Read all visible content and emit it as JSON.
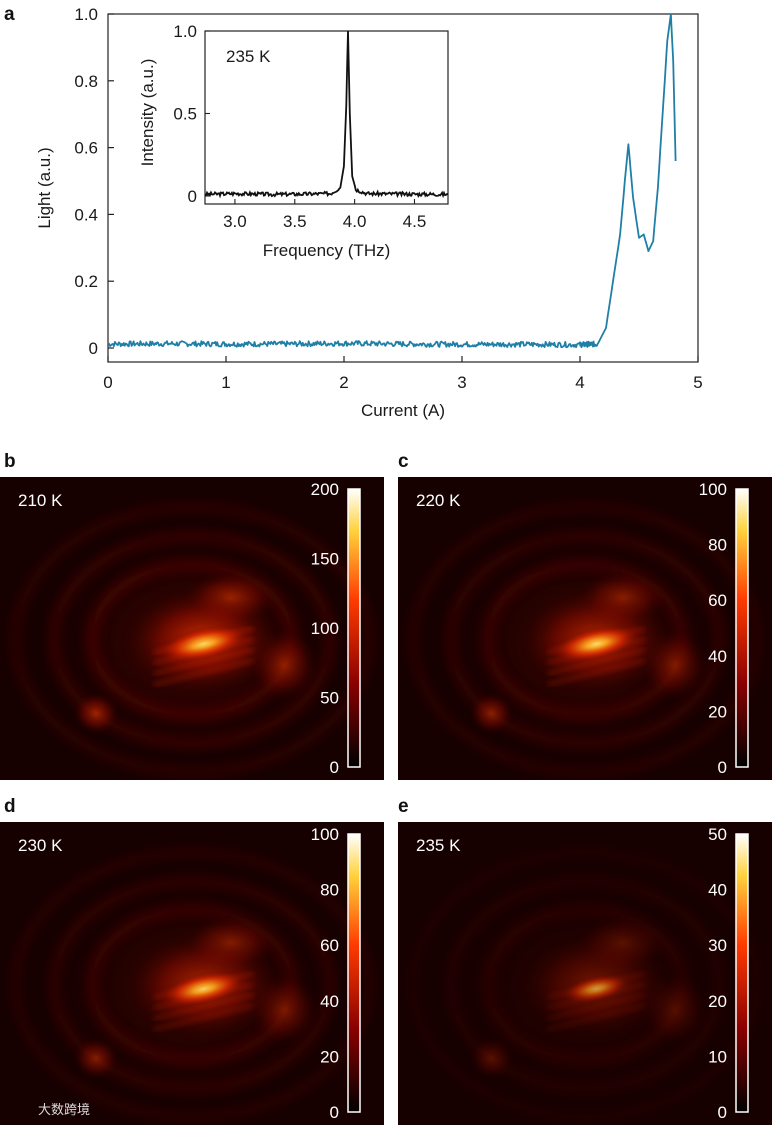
{
  "chart_data": [
    {
      "panel": "a",
      "type": "line",
      "xlabel": "Current (A)",
      "ylabel": "Light (a.u.)",
      "xlim": [
        0,
        5
      ],
      "ylim": [
        0,
        1.0
      ],
      "xticks": [
        "0",
        "1",
        "2",
        "3",
        "4",
        "5"
      ],
      "yticks": [
        "0",
        "0.2",
        "0.4",
        "0.6",
        "0.8",
        "1.0"
      ],
      "series_color": "#1f7fa6",
      "x": [
        0.0,
        0.5,
        1.0,
        1.5,
        2.0,
        2.5,
        3.0,
        3.5,
        4.0,
        4.15,
        4.22,
        4.28,
        4.34,
        4.38,
        4.41,
        4.45,
        4.5,
        4.54,
        4.58,
        4.62,
        4.66,
        4.7,
        4.74,
        4.77,
        4.79,
        4.81
      ],
      "y": [
        0.012,
        0.013,
        0.012,
        0.012,
        0.014,
        0.012,
        0.011,
        0.011,
        0.01,
        0.012,
        0.06,
        0.2,
        0.34,
        0.5,
        0.61,
        0.45,
        0.33,
        0.34,
        0.29,
        0.32,
        0.48,
        0.7,
        0.92,
        1.0,
        0.86,
        0.56
      ]
    },
    {
      "panel": "a-inset",
      "type": "line",
      "xlabel": "Frequency (THz)",
      "ylabel": "Intensity (a.u.)",
      "xlim": [
        2.75,
        4.78
      ],
      "ylim": [
        0,
        1.0
      ],
      "xticks": [
        "3.0",
        "3.5",
        "4.0",
        "4.5"
      ],
      "yticks": [
        "0",
        "0.5",
        "1.0"
      ],
      "annotation": "235 K",
      "series_color": "#111111",
      "x": [
        2.75,
        3.0,
        3.3,
        3.6,
        3.8,
        3.88,
        3.91,
        3.93,
        3.945,
        3.96,
        3.98,
        4.01,
        4.1,
        4.4,
        4.78
      ],
      "y": [
        0.01,
        0.015,
        0.01,
        0.012,
        0.015,
        0.05,
        0.18,
        0.55,
        1.0,
        0.5,
        0.12,
        0.04,
        0.015,
        0.012,
        0.01
      ]
    },
    {
      "panel": "b",
      "type": "heatmap",
      "label": "210 K",
      "colorbar_ticks": [
        "200",
        "150",
        "100",
        "50",
        "0"
      ],
      "colorbar_range": [
        0,
        200
      ],
      "peak_value": 200
    },
    {
      "panel": "c",
      "type": "heatmap",
      "label": "220 K",
      "colorbar_ticks": [
        "100",
        "80",
        "60",
        "40",
        "20",
        "0"
      ],
      "colorbar_range": [
        0,
        100
      ],
      "peak_value": 100
    },
    {
      "panel": "d",
      "type": "heatmap",
      "label": "230 K",
      "colorbar_ticks": [
        "100",
        "80",
        "60",
        "40",
        "20",
        "0"
      ],
      "colorbar_range": [
        0,
        100
      ],
      "peak_value": 90
    },
    {
      "panel": "e",
      "type": "heatmap",
      "label": "235 K",
      "colorbar_ticks": [
        "50",
        "40",
        "30",
        "20",
        "10",
        "0"
      ],
      "colorbar_range": [
        0,
        50
      ],
      "peak_value": 22
    }
  ],
  "panel_letters": [
    "a",
    "b",
    "c",
    "d",
    "e"
  ],
  "watermark": "大数跨境",
  "colors": {
    "line_a": "#1f7fa6",
    "heat_dark": "#1a0000",
    "heat_mid": "#cc1a00",
    "heat_hot": "#ffd060"
  }
}
